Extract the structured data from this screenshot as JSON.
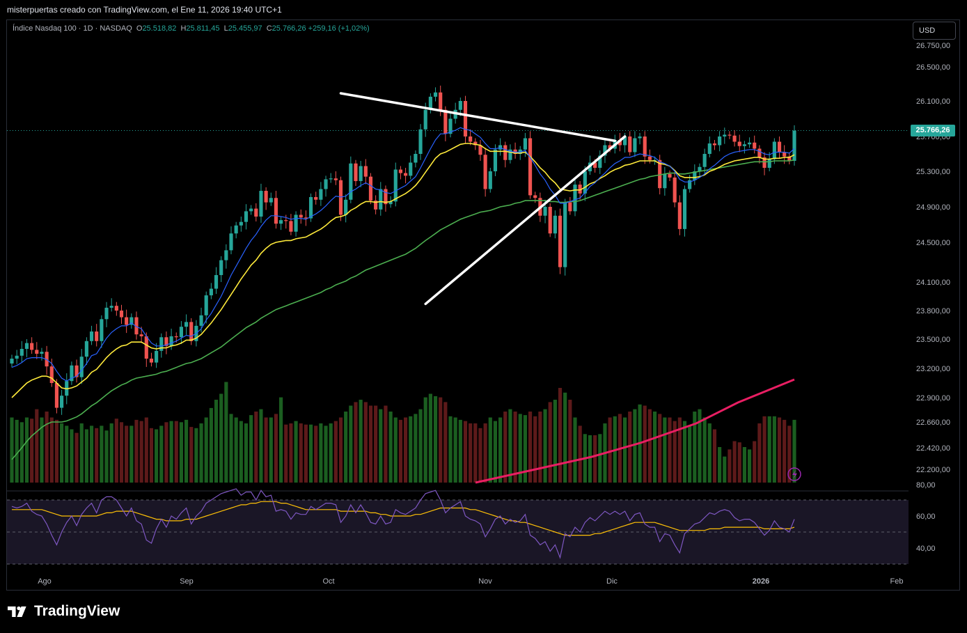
{
  "caption": "misterpuertas creado con TradingView.com, el Ene 11, 2026 19:40 UTC+1",
  "legend": {
    "symbol": "Índice Nasdaq 100 · 1D · NASDAQ",
    "o_key": "O",
    "o": "25.518,82",
    "h_key": "H",
    "h": "25.811,45",
    "l_key": "L",
    "l": "25.455,97",
    "c_key": "C",
    "c": "25.766,26",
    "change": "+259,16 (+1,02%)"
  },
  "currency_button": "USD",
  "last_price_label": "25.766,26",
  "brand": "TradingView",
  "colors": {
    "up": "#26a69a",
    "down": "#ef5350",
    "ema_fast": "#2962ff",
    "ema_mid": "#ffeb3b",
    "ema_slow": "#4caf50",
    "volume_ma": "#e91e63",
    "rsi": "#7e57c2",
    "rsi_ma": "#ffc107"
  },
  "chart_data": {
    "type": "candlestick",
    "price_axis_ticks": [
      "26.750,00",
      "26.500,00",
      "26.100,00",
      "25.700,00",
      "25.300,00",
      "24.900,00",
      "24.500,00",
      "24.100,00",
      "23.800,00",
      "23.500,00",
      "23.200,00",
      "22.900,00",
      "22.660,00",
      "22.420,00",
      "22.200,00"
    ],
    "rsi_axis_ticks": [
      "80,00",
      "60,00",
      "40,00"
    ],
    "time_labels": [
      "Ago",
      "Sep",
      "Oct",
      "Nov",
      "Dic",
      "2026",
      "Feb"
    ],
    "last_price": 25766.26,
    "closes": [
      23300,
      23330,
      23400,
      23460,
      23390,
      23350,
      23370,
      23220,
      23050,
      22800,
      22920,
      23070,
      23230,
      23110,
      23320,
      23480,
      23580,
      23480,
      23710,
      23830,
      23850,
      23800,
      23730,
      23650,
      23730,
      23550,
      23530,
      23300,
      23260,
      23380,
      23520,
      23430,
      23530,
      23520,
      23630,
      23680,
      23480,
      23640,
      23750,
      23960,
      24030,
      24170,
      24320,
      24420,
      24600,
      24690,
      24730,
      24850,
      24880,
      24790,
      25080,
      24950,
      25000,
      24710,
      24750,
      24740,
      24620,
      24810,
      24780,
      24770,
      25010,
      24980,
      25100,
      25210,
      25220,
      25200,
      24810,
      24980,
      25390,
      25190,
      25360,
      25240,
      24970,
      24870,
      25100,
      24930,
      24960,
      25320,
      25280,
      25250,
      25400,
      25500,
      25780,
      26000,
      26150,
      26200,
      26000,
      25730,
      25900,
      26000,
      26100,
      25700,
      25640,
      25600,
      25490,
      25100,
      25300,
      25550,
      25600,
      25430,
      25550,
      25500,
      25550,
      25680,
      25030,
      25000,
      24800,
      24900,
      24600,
      24800,
      24250,
      24950,
      24850,
      25150,
      25050,
      25300,
      25400,
      25340,
      25480,
      25600,
      25560,
      25660,
      25600,
      25700,
      25520,
      25680,
      25700,
      25470,
      25430,
      25430,
      25110,
      25270,
      25230,
      24950,
      24650,
      25100,
      25200,
      25300,
      25350,
      25500,
      25620,
      25600,
      25700,
      25720,
      25710,
      25640,
      25590,
      25610,
      25630,
      25560,
      25460,
      25340,
      25440,
      25640,
      25520,
      25470,
      25420,
      25766
    ],
    "ema_fast": [
      23210,
      23230,
      23260,
      23300,
      23310,
      23310,
      23310,
      23290,
      23250,
      23170,
      23100,
      23070,
      23100,
      23120,
      23180,
      23250,
      23330,
      23350,
      23430,
      23510,
      23570,
      23610,
      23640,
      23640,
      23670,
      23630,
      23610,
      23530,
      23460,
      23430,
      23430,
      23440,
      23460,
      23480,
      23510,
      23540,
      23530,
      23560,
      23610,
      23700,
      23770,
      23860,
      23950,
      24060,
      24170,
      24260,
      24350,
      24440,
      24520,
      24590,
      24680,
      24750,
      24800,
      24800,
      24790,
      24780,
      24760,
      24770,
      24770,
      24760,
      24790,
      24820,
      24860,
      24910,
      24970,
      25020,
      25010,
      25020,
      25070,
      25100,
      25140,
      25170,
      25140,
      25100,
      25090,
      25060,
      25050,
      25080,
      25110,
      25140,
      25190,
      25240,
      25340,
      25450,
      25560,
      25660,
      25730,
      25730,
      25750,
      25770,
      25800,
      25780,
      25770,
      25730,
      25690,
      25620,
      25560,
      25560,
      25570,
      25550,
      25530,
      25520,
      25520,
      25540,
      25460,
      25370,
      25270,
      25200,
      25100,
      25030,
      24940,
      24940,
      24960,
      24980,
      25000,
      25060,
      25130,
      25170,
      25230,
      25280,
      25340,
      25390,
      25420,
      25460,
      25460,
      25480,
      25500,
      25490,
      25480,
      25460,
      25410,
      25390,
      25360,
      25300,
      25210,
      25180,
      25180,
      25200,
      25230,
      25270,
      25330,
      25370,
      25420,
      25470,
      25500,
      25520,
      25530,
      25540,
      25550,
      25550,
      25530,
      25500,
      25490,
      25520,
      25520,
      25520,
      25510,
      25560
    ],
    "ema_mid": [
      22900,
      22950,
      23000,
      23050,
      23080,
      23100,
      23120,
      23120,
      23100,
      23050,
      23000,
      22990,
      23000,
      23020,
      23060,
      23100,
      23160,
      23190,
      23250,
      23310,
      23360,
      23400,
      23430,
      23440,
      23470,
      23470,
      23470,
      23440,
      23410,
      23400,
      23410,
      23410,
      23430,
      23440,
      23460,
      23490,
      23490,
      23510,
      23550,
      23610,
      23670,
      23740,
      23810,
      23890,
      23970,
      24050,
      24130,
      24200,
      24270,
      24320,
      24390,
      24440,
      24480,
      24500,
      24510,
      24520,
      24520,
      24540,
      24550,
      24560,
      24590,
      24620,
      24650,
      24690,
      24740,
      24780,
      24790,
      24810,
      24860,
      24890,
      24930,
      24960,
      24960,
      24950,
      24960,
      24950,
      24960,
      24990,
      25020,
      25050,
      25090,
      25140,
      25210,
      25290,
      25370,
      25450,
      25500,
      25520,
      25550,
      25580,
      25610,
      25620,
      25620,
      25610,
      25600,
      25560,
      25530,
      25530,
      25530,
      25530,
      25520,
      25510,
      25510,
      25520,
      25470,
      25410,
      25340,
      25290,
      25220,
      25170,
      25100,
      25090,
      25080,
      25090,
      25090,
      25120,
      25160,
      25180,
      25220,
      25250,
      25290,
      25320,
      25340,
      25370,
      25380,
      25400,
      25420,
      25420,
      25420,
      25420,
      25390,
      25380,
      25360,
      25310,
      25250,
      25230,
      25230,
      25230,
      25240,
      25260,
      25300,
      25320,
      25350,
      25380,
      25400,
      25420,
      25430,
      25440,
      25450,
      25460,
      25460,
      25440,
      25440,
      25450,
      25450,
      25460,
      25460,
      25490
    ],
    "ema_slow": [
      22300,
      22360,
      22420,
      22480,
      22530,
      22570,
      22610,
      22640,
      22660,
      22660,
      22660,
      22670,
      22690,
      22710,
      22740,
      22780,
      22820,
      22850,
      22890,
      22930,
      22970,
      23000,
      23030,
      23050,
      23080,
      23100,
      23110,
      23120,
      23130,
      23140,
      23160,
      23170,
      23190,
      23210,
      23230,
      23250,
      23260,
      23280,
      23300,
      23330,
      23360,
      23390,
      23420,
      23460,
      23500,
      23540,
      23580,
      23620,
      23650,
      23680,
      23720,
      23750,
      23780,
      23810,
      23830,
      23850,
      23870,
      23890,
      23910,
      23930,
      23950,
      23970,
      23990,
      24020,
      24040,
      24070,
      24090,
      24110,
      24140,
      24160,
      24190,
      24220,
      24240,
      24260,
      24280,
      24300,
      24320,
      24340,
      24360,
      24380,
      24410,
      24440,
      24480,
      24520,
      24560,
      24600,
      24640,
      24670,
      24700,
      24730,
      24760,
      24780,
      24800,
      24820,
      24840,
      24850,
      24860,
      24880,
      24900,
      24910,
      24920,
      24940,
      24950,
      24970,
      24970,
      24970,
      24970,
      24970,
      24960,
      24960,
      24950,
      24950,
      24960,
      24960,
      24970,
      24990,
      25010,
      25030,
      25050,
      25070,
      25090,
      25110,
      25130,
      25150,
      25170,
      25190,
      25210,
      25220,
      25240,
      25250,
      25260,
      25270,
      25280,
      25280,
      25270,
      25270,
      25280,
      25290,
      25300,
      25310,
      25320,
      25330,
      25340,
      25350,
      25360,
      25370,
      25380,
      25390,
      25400,
      25410,
      25410,
      25410,
      25410,
      25420,
      25420,
      25420,
      25420,
      25430
    ],
    "volume_rel": [
      0.55,
      0.53,
      0.51,
      0.55,
      0.54,
      0.62,
      0.55,
      0.6,
      0.55,
      0.53,
      0.5,
      0.48,
      0.45,
      0.42,
      0.5,
      0.45,
      0.48,
      0.46,
      0.48,
      0.44,
      0.5,
      0.54,
      0.51,
      0.48,
      0.48,
      0.53,
      0.52,
      0.55,
      0.46,
      0.45,
      0.48,
      0.51,
      0.52,
      0.52,
      0.51,
      0.53,
      0.47,
      0.46,
      0.5,
      0.55,
      0.63,
      0.7,
      0.75,
      0.85,
      0.58,
      0.55,
      0.52,
      0.5,
      0.57,
      0.6,
      0.62,
      0.55,
      0.55,
      0.58,
      0.72,
      0.49,
      0.5,
      0.52,
      0.5,
      0.49,
      0.49,
      0.48,
      0.5,
      0.48,
      0.5,
      0.52,
      0.55,
      0.6,
      0.65,
      0.68,
      0.7,
      0.68,
      0.65,
      0.65,
      0.62,
      0.65,
      0.6,
      0.55,
      0.53,
      0.55,
      0.56,
      0.58,
      0.62,
      0.72,
      0.75,
      0.73,
      0.72,
      0.68,
      0.56,
      0.55,
      0.53,
      0.52,
      0.5,
      0.5,
      0.46,
      0.5,
      0.55,
      0.52,
      0.55,
      0.6,
      0.62,
      0.6,
      0.58,
      0.57,
      0.6,
      0.56,
      0.6,
      0.62,
      0.68,
      0.7,
      0.8,
      0.76,
      0.7,
      0.55,
      0.48,
      0.41,
      0.4,
      0.4,
      0.41,
      0.5,
      0.55,
      0.56,
      0.58,
      0.55,
      0.6,
      0.62,
      0.66,
      0.65,
      0.62,
      0.6,
      0.58,
      0.55,
      0.55,
      0.52,
      0.55,
      0.52,
      0.48,
      0.6,
      0.62,
      0.55,
      0.5,
      0.45,
      0.3,
      0.22,
      0.28,
      0.35,
      0.34,
      0.3,
      0.28,
      0.35,
      0.5,
      0.56,
      0.56,
      0.56,
      0.55,
      0.53,
      0.48,
      0.53
    ],
    "rsi": [
      66,
      65,
      66,
      68,
      63,
      61,
      60,
      55,
      48,
      42,
      50,
      56,
      60,
      54,
      61,
      65,
      68,
      62,
      70,
      72,
      72,
      70,
      65,
      60,
      65,
      57,
      55,
      45,
      43,
      52,
      58,
      53,
      60,
      58,
      62,
      65,
      55,
      60,
      63,
      68,
      70,
      72,
      74,
      75,
      76,
      77,
      73,
      75,
      75,
      70,
      76,
      72,
      73,
      63,
      64,
      63,
      58,
      62,
      61,
      61,
      66,
      64,
      66,
      68,
      68,
      67,
      56,
      60,
      67,
      62,
      67,
      62,
      56,
      55,
      60,
      55,
      56,
      64,
      62,
      61,
      63,
      65,
      70,
      74,
      75,
      76,
      70,
      62,
      65,
      67,
      69,
      60,
      58,
      57,
      55,
      47,
      52,
      58,
      60,
      55,
      58,
      56,
      57,
      61,
      48,
      46,
      42,
      44,
      38,
      42,
      34,
      49,
      47,
      53,
      50,
      56,
      59,
      57,
      60,
      63,
      61,
      63,
      61,
      63,
      57,
      61,
      62,
      55,
      53,
      53,
      44,
      49,
      48,
      42,
      37,
      49,
      52,
      55,
      56,
      59,
      62,
      61,
      63,
      64,
      63,
      59,
      57,
      58,
      58,
      56,
      52,
      48,
      51,
      57,
      53,
      52,
      50,
      58
    ],
    "rsi_ma": [
      64,
      64,
      64,
      64,
      64,
      64,
      64,
      63,
      62,
      61,
      60,
      60,
      60,
      60,
      60,
      60,
      60,
      60,
      61,
      62,
      62,
      63,
      63,
      63,
      63,
      62,
      61,
      60,
      59,
      58,
      58,
      57,
      57,
      57,
      57,
      58,
      58,
      58,
      59,
      60,
      61,
      62,
      63,
      64,
      65,
      66,
      67,
      67,
      68,
      68,
      69,
      69,
      69,
      69,
      68,
      68,
      67,
      66,
      65,
      64,
      64,
      64,
      64,
      64,
      64,
      64,
      63,
      63,
      63,
      63,
      63,
      63,
      62,
      62,
      61,
      61,
      60,
      60,
      60,
      60,
      60,
      61,
      61,
      62,
      63,
      64,
      65,
      65,
      65,
      65,
      65,
      65,
      64,
      64,
      63,
      62,
      61,
      60,
      59,
      58,
      57,
      57,
      56,
      56,
      55,
      54,
      53,
      52,
      51,
      50,
      49,
      48,
      48,
      48,
      48,
      48,
      48,
      49,
      49,
      50,
      51,
      52,
      53,
      54,
      55,
      56,
      56,
      56,
      56,
      56,
      55,
      54,
      53,
      52,
      51,
      51,
      51,
      51,
      51,
      51,
      52,
      52,
      52,
      53,
      53,
      53,
      53,
      53,
      53,
      53,
      53,
      52,
      52,
      52,
      52,
      52,
      52,
      53
    ],
    "trendlines": [
      {
        "from": {
          "date": "2025-10-29",
          "price": 26190
        },
        "to": {
          "date": "2026-01-13",
          "price": 25650
        }
      },
      {
        "from": {
          "date": "2025-11-21",
          "price": 23870
        },
        "to": {
          "date": "2026-01-16",
          "price": 25700
        }
      }
    ]
  }
}
